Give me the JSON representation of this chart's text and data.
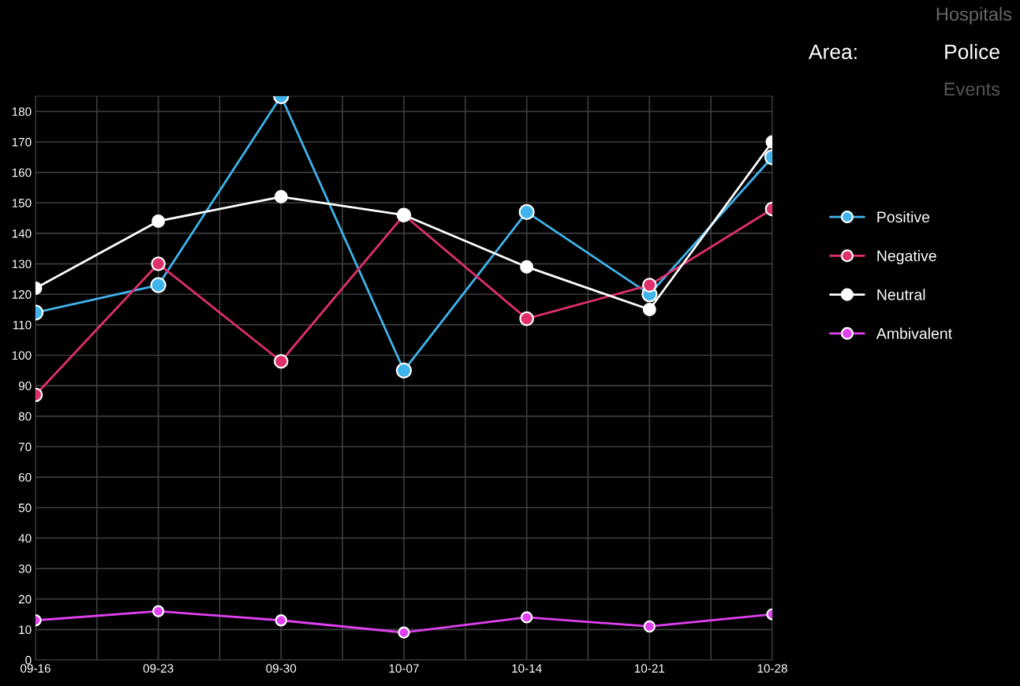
{
  "chart_data": {
    "type": "line",
    "categories": [
      "09-16",
      "09-23",
      "09-30",
      "10-07",
      "10-14",
      "10-21",
      "10-28"
    ],
    "series": [
      {
        "name": "Positive",
        "color": "#3fb4ec",
        "values": [
          114,
          123,
          185,
          95,
          147,
          120,
          165
        ]
      },
      {
        "name": "Negative",
        "color": "#e0306a",
        "values": [
          87,
          130,
          98,
          146,
          112,
          123,
          148
        ]
      },
      {
        "name": "Neutral",
        "color": "#ffffff",
        "values": [
          122,
          144,
          152,
          146,
          129,
          115,
          170
        ]
      },
      {
        "name": "Ambivalent",
        "color": "#e040f0",
        "values": [
          13,
          16,
          13,
          9,
          14,
          11,
          15
        ]
      }
    ],
    "ylim": [
      0,
      185
    ],
    "yticks": [
      0,
      10,
      20,
      30,
      40,
      50,
      60,
      70,
      80,
      90,
      100,
      110,
      120,
      130,
      140,
      150,
      160,
      170,
      180
    ],
    "grid": true,
    "legend": "right",
    "marker": "circle",
    "line_style": "solid",
    "annotations": [
      "Hospitals",
      "Area:",
      "Police",
      "Events"
    ]
  }
}
